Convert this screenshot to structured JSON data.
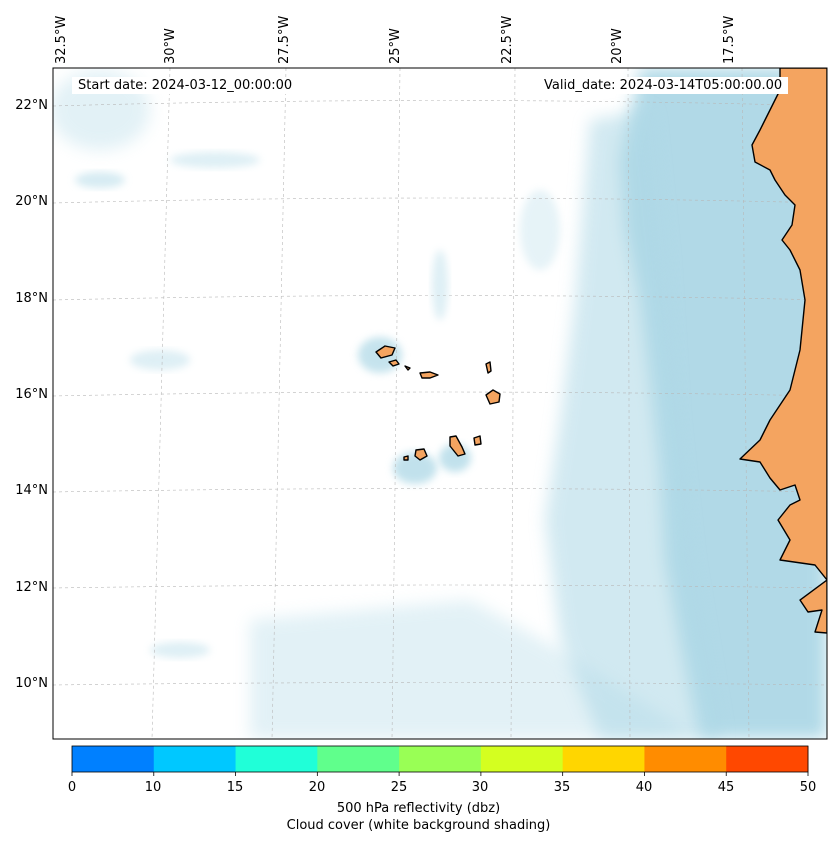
{
  "map": {
    "start_date": "Start date: 2024-03-12_00:00:00",
    "valid_date": "Valid_date: 2024-03-14T05:00:00.00",
    "lon_labels": [
      "32.5°W",
      "30°W",
      "27.5°W",
      "25°W",
      "22.5°W",
      "20°W",
      "17.5°W"
    ],
    "lat_labels": [
      "22°N",
      "20°N",
      "18°N",
      "16°N",
      "14°N",
      "12°N",
      "10°N"
    ],
    "land_color": "#f4a460",
    "cloud_color": "#add8e6",
    "ocean_color": "#ffffff"
  },
  "colorbar": {
    "ticks": [
      "0",
      "10",
      "15",
      "20",
      "25",
      "30",
      "35",
      "40",
      "45",
      "50"
    ],
    "colors": [
      "#0080ff",
      "#00c8ff",
      "#20ffd8",
      "#60ff8c",
      "#99ff55",
      "#d4ff20",
      "#ffd600",
      "#ff8c00",
      "#ff4800"
    ],
    "label_line1": "500 hPa reflectivity (dbz)",
    "label_line2": "Cloud cover (white background shading)"
  }
}
